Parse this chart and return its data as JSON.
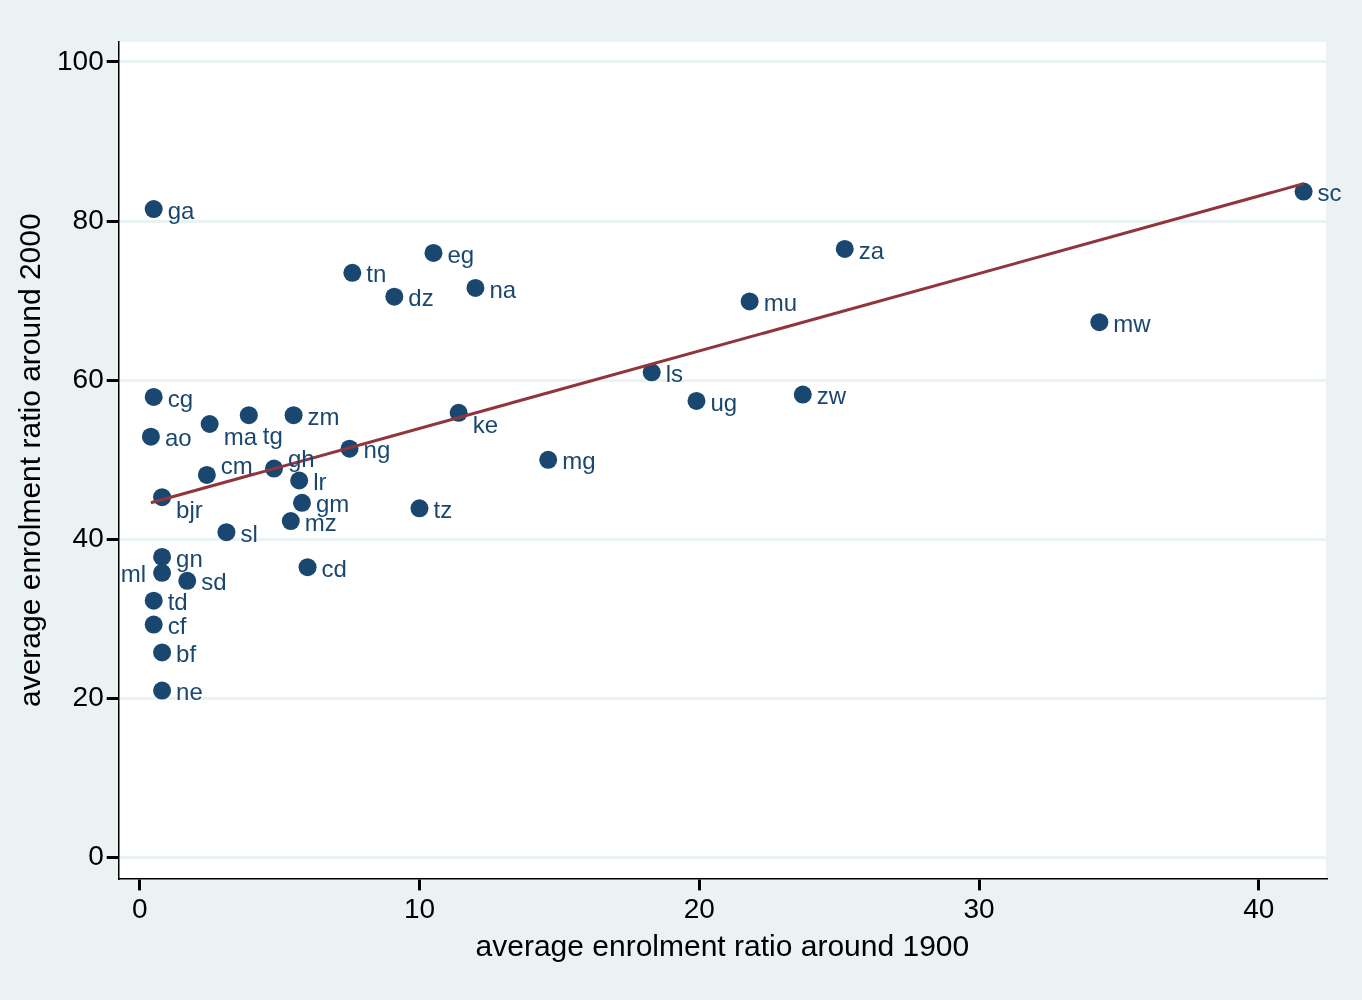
{
  "chart_data": {
    "type": "scatter",
    "xlabel": "average enrolment ratio around 1900",
    "ylabel": "average enrolment ratio around 2000",
    "xlim": [
      -0.75,
      42.4
    ],
    "ylim": [
      -2.6,
      102.5
    ],
    "xticks": [
      0,
      10,
      20,
      30,
      40
    ],
    "yticks": [
      0,
      20,
      40,
      60,
      80,
      100
    ],
    "grid": "y",
    "marker": "circle",
    "series": [
      {
        "color": "#1a476f",
        "x": [
          0.5,
          0.5,
          0.4,
          2.5,
          3.9,
          5.5,
          2.4,
          4.8,
          5.7,
          0.8,
          5.8,
          5.4,
          3.1,
          0.8,
          0.8,
          1.7,
          0.5,
          0.5,
          0.8,
          0.8,
          6.0,
          10.0,
          7.5,
          11.4,
          7.6,
          9.1,
          10.5,
          12.0,
          14.6,
          18.3,
          19.9,
          21.8,
          23.7,
          25.2,
          34.3,
          41.6
        ],
        "values": [
          81.5,
          57.9,
          52.9,
          54.5,
          55.6,
          55.6,
          48.1,
          48.9,
          47.4,
          45.3,
          44.6,
          42.3,
          40.9,
          37.8,
          35.8,
          34.8,
          32.3,
          29.3,
          25.8,
          21.0,
          36.5,
          43.9,
          51.4,
          55.9,
          73.5,
          70.5,
          76.0,
          71.6,
          50.0,
          61.0,
          57.4,
          69.9,
          58.2,
          76.5,
          67.3,
          83.7
        ]
      },
      {
        "type": "line",
        "color": "#90353b",
        "marker": "none",
        "x": [
          0.4,
          41.6
        ],
        "values": [
          44.6,
          84.7
        ]
      }
    ],
    "annotations": [
      {
        "text": "ga",
        "x": 0.5,
        "y": 81.5
      },
      {
        "text": "cg",
        "x": 0.5,
        "y": 57.9
      },
      {
        "text": "ao",
        "x": 0.4,
        "y": 52.9
      },
      {
        "text": "ma",
        "x": 2.5,
        "y": 54.5
      },
      {
        "text": "tg",
        "x": 3.9,
        "y": 55.6
      },
      {
        "text": "zm",
        "x": 5.5,
        "y": 55.6
      },
      {
        "text": "cm",
        "x": 2.4,
        "y": 48.1
      },
      {
        "text": "gh",
        "x": 4.8,
        "y": 48.9
      },
      {
        "text": "lr",
        "x": 5.7,
        "y": 47.4
      },
      {
        "text": "bjr",
        "x": 0.8,
        "y": 45.3
      },
      {
        "text": "gm",
        "x": 5.8,
        "y": 44.6
      },
      {
        "text": "mz",
        "x": 5.4,
        "y": 42.3
      },
      {
        "text": "sl",
        "x": 3.1,
        "y": 40.9
      },
      {
        "text": "gn",
        "x": 0.8,
        "y": 37.8
      },
      {
        "text": "ml",
        "x": 0.8,
        "y": 35.8
      },
      {
        "text": "sd",
        "x": 1.7,
        "y": 34.8
      },
      {
        "text": "td",
        "x": 0.5,
        "y": 32.3
      },
      {
        "text": "cf",
        "x": 0.5,
        "y": 29.3
      },
      {
        "text": "bf",
        "x": 0.8,
        "y": 25.8
      },
      {
        "text": "ne",
        "x": 0.8,
        "y": 21.0
      },
      {
        "text": "cd",
        "x": 6.0,
        "y": 36.5
      },
      {
        "text": "tz",
        "x": 10.0,
        "y": 43.9
      },
      {
        "text": "ng",
        "x": 7.5,
        "y": 51.4
      },
      {
        "text": "ke",
        "x": 11.4,
        "y": 55.9
      },
      {
        "text": "tn",
        "x": 7.6,
        "y": 73.5
      },
      {
        "text": "dz",
        "x": 9.1,
        "y": 70.5
      },
      {
        "text": "eg",
        "x": 10.5,
        "y": 76.0
      },
      {
        "text": "na",
        "x": 12.0,
        "y": 71.6
      },
      {
        "text": "mg",
        "x": 14.6,
        "y": 50.0
      },
      {
        "text": "ls",
        "x": 18.3,
        "y": 61.0
      },
      {
        "text": "ug",
        "x": 19.9,
        "y": 57.4
      },
      {
        "text": "mu",
        "x": 21.8,
        "y": 69.9
      },
      {
        "text": "zw",
        "x": 23.7,
        "y": 58.2
      },
      {
        "text": "za",
        "x": 25.2,
        "y": 76.5
      },
      {
        "text": "mw",
        "x": 34.3,
        "y": 67.3
      },
      {
        "text": "sc",
        "x": 41.6,
        "y": 83.7
      }
    ]
  }
}
